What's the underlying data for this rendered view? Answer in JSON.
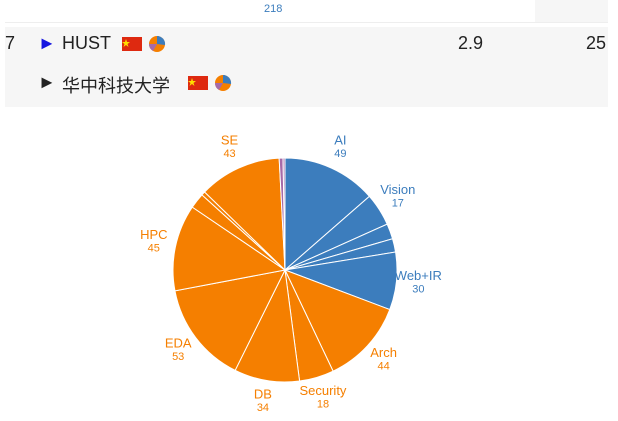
{
  "previous_row": {
    "clipped_value": "218"
  },
  "rows": [
    {
      "rank": "7",
      "name": "HUST",
      "score": "2.9",
      "faculty": "25"
    },
    {
      "name": "华中科技大学"
    }
  ],
  "chart_data": {
    "type": "pie",
    "categories": [
      "AI",
      "Vision",
      null,
      null,
      "Web+IR",
      "Arch",
      "Security",
      "DB",
      "EDA",
      "HPC",
      null,
      null,
      "SE",
      null,
      null
    ],
    "values": [
      49,
      17,
      8,
      7,
      30,
      44,
      18,
      34,
      53,
      45,
      8,
      2,
      43,
      2,
      1
    ],
    "colors": [
      "#3c7dbd",
      "#3c7dbd",
      "#3c7dbd",
      "#3c7dbd",
      "#3c7dbd",
      "#f57f00",
      "#f57f00",
      "#f57f00",
      "#f57f00",
      "#f57f00",
      "#f57f00",
      "#f57f00",
      "#f57f00",
      "#a66aa8",
      "#a66aa8"
    ]
  }
}
